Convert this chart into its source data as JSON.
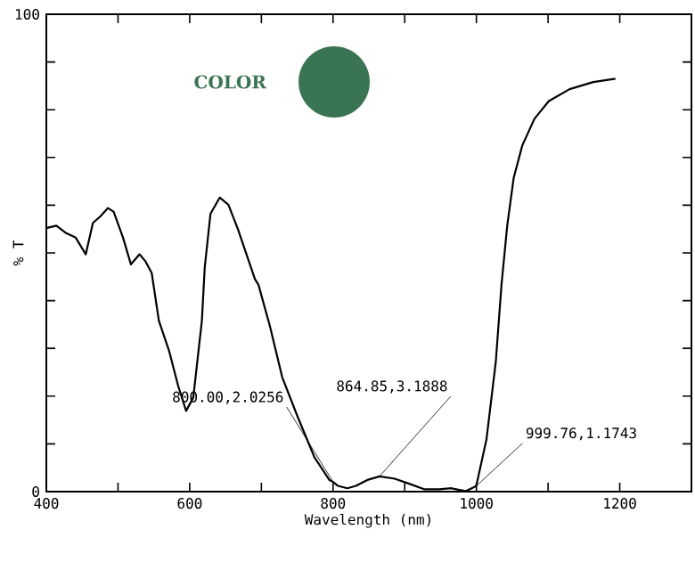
{
  "chart_data": {
    "type": "line",
    "xlabel": "Wavelength (nm)",
    "ylabel": "% T",
    "x": [
      400,
      414,
      427,
      441,
      455,
      465,
      475,
      486,
      494,
      507,
      518,
      530,
      538,
      547,
      557,
      571,
      584,
      595,
      605,
      617,
      621,
      629,
      642,
      654,
      667,
      691,
      696,
      712,
      729,
      750,
      774,
      795,
      800,
      807,
      820,
      832,
      849,
      864.85,
      886,
      907,
      927,
      948,
      965,
      985,
      999.76,
      1014,
      1027,
      1035,
      1043,
      1052,
      1064,
      1081,
      1101,
      1130,
      1163,
      1194
    ],
    "series": [
      {
        "color": "#000000",
        "values": [
          55.2,
          55.7,
          54.2,
          53.2,
          49.7,
          56.3,
          57.6,
          59.4,
          58.6,
          53.2,
          47.6,
          49.7,
          48.3,
          45.8,
          35.8,
          29.6,
          22.1,
          16.9,
          19.7,
          35.8,
          47,
          58.2,
          61.6,
          60.1,
          55.1,
          44.5,
          43.3,
          34.6,
          24,
          15.9,
          7.2,
          2.4,
          2.0256,
          1.2,
          0.7,
          1.2,
          2.5,
          3.1888,
          2.7,
          1.6,
          0.5,
          0.5,
          0.7,
          0.1,
          1.1743,
          10.9,
          27.1,
          43.3,
          55.7,
          65.7,
          72.5,
          78.1,
          81.8,
          84.3,
          85.8,
          86.5
        ]
      }
    ],
    "xlim": [
      400,
      1300
    ],
    "ylim": [
      0,
      100
    ],
    "xticks": [
      400,
      {
        "value": 500,
        "label": null
      },
      600,
      {
        "value": 700,
        "label": null
      },
      800,
      {
        "value": 900,
        "label": null
      },
      1000,
      {
        "value": 1100,
        "label": null
      },
      1200
    ],
    "yticks": [
      0,
      {
        "value": 10,
        "label": null
      },
      {
        "value": 20,
        "label": null
      },
      {
        "value": 30,
        "label": null
      },
      {
        "value": 40,
        "label": null
      },
      {
        "value": 50,
        "label": null
      },
      {
        "value": 60,
        "label": null
      },
      {
        "value": 70,
        "label": null
      },
      {
        "value": 80,
        "label": null
      },
      {
        "value": 90,
        "label": null
      },
      100
    ],
    "annotations": [
      "COLOR",
      {
        "text": "800.00,2.0256",
        "x": 800,
        "y": 2.0256
      },
      {
        "text": "864.85,3.1888",
        "x": 864.85,
        "y": 3.1888
      },
      {
        "text": "999.76,1.1743",
        "x": 999.76,
        "y": 1.1743
      }
    ],
    "grid": false,
    "marker": "none",
    "line_style": "solid"
  }
}
